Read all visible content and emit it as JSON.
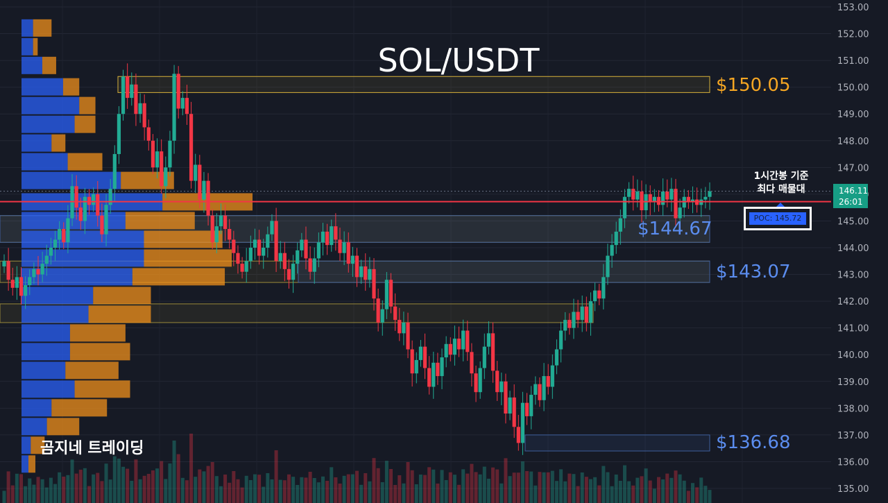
{
  "title": "SOL/USDT",
  "watermark": "곰지네 트레이딩",
  "annotation": {
    "line1": "1시간봉 기준",
    "line2": "최다 매물대"
  },
  "poc": {
    "label": "POC: 145.72",
    "price": 145.72
  },
  "last_price": {
    "price": 146.11,
    "price_text": "146.11",
    "countdown": "26:01"
  },
  "colors": {
    "up": "#22ab94",
    "down": "#f23645",
    "vp_up": "#2962ff",
    "vp_down": "#f7931a",
    "poc_line": "#f23645",
    "level_orange": "#f5a623",
    "level_blue": "#5b8def"
  },
  "levels": [
    {
      "price": 150.05,
      "text": "$150.05",
      "color": "orange"
    },
    {
      "price": 144.67,
      "text": "$144.67",
      "color": "blue"
    },
    {
      "price": 143.07,
      "text": "$143.07",
      "color": "blue"
    },
    {
      "price": 136.68,
      "text": "$136.68",
      "color": "blue"
    }
  ],
  "chart_data": {
    "type": "candlestick",
    "title": "SOL/USDT",
    "y_ticks": [
      "153.00",
      "152.00",
      "151.00",
      "150.00",
      "149.00",
      "148.00",
      "147.00",
      "146.00",
      "145.00",
      "144.00",
      "143.00",
      "142.00",
      "141.00",
      "140.00",
      "139.00",
      "138.00",
      "137.00",
      "136.00",
      "135.00"
    ],
    "ylim": [
      134.6,
      153.3
    ],
    "grid": true,
    "zones": [
      {
        "from": 149.8,
        "to": 150.4,
        "color": "orange"
      },
      {
        "from": 144.2,
        "to": 145.2,
        "color": "yellow"
      },
      {
        "from": 142.7,
        "to": 143.5,
        "color": "yellow"
      },
      {
        "from": 141.2,
        "to": 141.9,
        "color": "yellow"
      },
      {
        "from": 144.2,
        "to": 145.2,
        "color": "blue"
      },
      {
        "from": 142.7,
        "to": 143.5,
        "color": "blue"
      },
      {
        "from": 136.4,
        "to": 137.0,
        "color": "blue"
      }
    ],
    "volume_profile": [
      [
        152.2,
        0.05,
        0.13
      ],
      [
        151.5,
        0.05,
        0.07
      ],
      [
        150.8,
        0.09,
        0.15
      ],
      [
        150.0,
        0.18,
        0.25
      ],
      [
        149.3,
        0.25,
        0.32
      ],
      [
        148.6,
        0.23,
        0.32
      ],
      [
        147.9,
        0.13,
        0.19
      ],
      [
        147.2,
        0.2,
        0.35
      ],
      [
        146.5,
        0.43,
        0.66
      ],
      [
        145.7,
        0.61,
        1.0
      ],
      [
        145.0,
        0.45,
        0.75
      ],
      [
        144.3,
        0.53,
        0.87
      ],
      [
        143.6,
        0.53,
        0.91
      ],
      [
        142.9,
        0.48,
        0.88
      ],
      [
        142.2,
        0.31,
        0.56
      ],
      [
        141.5,
        0.29,
        0.56
      ],
      [
        140.8,
        0.21,
        0.45
      ],
      [
        140.1,
        0.21,
        0.47
      ],
      [
        139.4,
        0.19,
        0.42
      ],
      [
        138.7,
        0.23,
        0.47
      ],
      [
        138.0,
        0.13,
        0.37
      ],
      [
        137.3,
        0.11,
        0.25
      ],
      [
        136.6,
        0.04,
        0.1
      ],
      [
        135.9,
        0.03,
        0.06
      ]
    ],
    "candles": [
      [
        143.3,
        143.5
      ],
      [
        143.5,
        142.8
      ],
      [
        142.8,
        142.5
      ],
      [
        142.5,
        142.9
      ],
      [
        142.9,
        142.2
      ],
      [
        142.2,
        142.6
      ],
      [
        142.6,
        142.9
      ],
      [
        142.9,
        143.2
      ],
      [
        143.2,
        143.0
      ],
      [
        143.0,
        143.4
      ],
      [
        143.4,
        143.7
      ],
      [
        143.7,
        144.0
      ],
      [
        144.0,
        144.3
      ],
      [
        144.3,
        144.7
      ],
      [
        144.7,
        144.2
      ],
      [
        144.2,
        145.1
      ],
      [
        145.1,
        146.3
      ],
      [
        146.3,
        145.5
      ],
      [
        145.5,
        145.0
      ],
      [
        145.0,
        145.9
      ],
      [
        145.9,
        145.6
      ],
      [
        145.6,
        146.0
      ],
      [
        146.0,
        145.2
      ],
      [
        145.2,
        144.5
      ],
      [
        144.5,
        145.6
      ],
      [
        145.6,
        146.2
      ],
      [
        146.2,
        147.5
      ],
      [
        147.5,
        149.0
      ],
      [
        149.0,
        150.4
      ],
      [
        150.4,
        149.6
      ],
      [
        149.6,
        150.1
      ],
      [
        150.1,
        149.0
      ],
      [
        149.0,
        149.4
      ],
      [
        149.4,
        148.5
      ],
      [
        148.5,
        148.0
      ],
      [
        148.0,
        147.0
      ],
      [
        147.0,
        147.6
      ],
      [
        147.6,
        146.3
      ],
      [
        146.3,
        147.0
      ],
      [
        147.0,
        148.0
      ],
      [
        148.0,
        150.5
      ],
      [
        150.5,
        149.2
      ],
      [
        149.2,
        149.6
      ],
      [
        149.6,
        149.0
      ],
      [
        149.0,
        146.5
      ],
      [
        146.5,
        147.1
      ],
      [
        147.1,
        145.8
      ],
      [
        145.8,
        146.5
      ],
      [
        146.5,
        145.2
      ],
      [
        145.2,
        144.2
      ],
      [
        144.2,
        144.8
      ],
      [
        144.8,
        145.2
      ],
      [
        145.2,
        144.7
      ],
      [
        144.7,
        144.3
      ],
      [
        144.3,
        143.8
      ],
      [
        143.8,
        143.4
      ],
      [
        143.4,
        143.1
      ],
      [
        143.1,
        143.5
      ],
      [
        143.5,
        144.0
      ],
      [
        144.0,
        144.3
      ],
      [
        144.3,
        143.7
      ],
      [
        143.7,
        144.0
      ],
      [
        144.0,
        144.5
      ],
      [
        144.5,
        145.0
      ],
      [
        145.0,
        143.5
      ],
      [
        143.5,
        143.8
      ],
      [
        143.8,
        143.2
      ],
      [
        143.2,
        142.8
      ],
      [
        142.8,
        143.4
      ],
      [
        143.4,
        143.9
      ],
      [
        143.9,
        144.3
      ],
      [
        144.3,
        143.6
      ],
      [
        143.6,
        143.1
      ],
      [
        143.1,
        143.6
      ],
      [
        143.6,
        144.2
      ],
      [
        144.2,
        144.6
      ],
      [
        144.6,
        144.1
      ],
      [
        144.1,
        144.8
      ],
      [
        144.8,
        144.3
      ],
      [
        144.3,
        143.8
      ],
      [
        143.8,
        144.2
      ],
      [
        144.2,
        143.4
      ],
      [
        143.4,
        143.7
      ],
      [
        143.7,
        142.9
      ],
      [
        142.9,
        143.3
      ],
      [
        143.3,
        142.8
      ],
      [
        142.8,
        143.2
      ],
      [
        143.2,
        142.1
      ],
      [
        142.1,
        141.2
      ],
      [
        141.2,
        141.7
      ],
      [
        141.7,
        142.8
      ],
      [
        142.8,
        141.8
      ],
      [
        141.8,
        141.3
      ],
      [
        141.3,
        140.8
      ],
      [
        140.8,
        141.2
      ],
      [
        141.2,
        140.2
      ],
      [
        140.2,
        139.3
      ],
      [
        139.3,
        139.8
      ],
      [
        139.8,
        140.3
      ],
      [
        140.3,
        139.5
      ],
      [
        139.5,
        138.8
      ],
      [
        138.8,
        139.7
      ],
      [
        139.7,
        139.2
      ],
      [
        139.2,
        139.9
      ],
      [
        139.9,
        140.4
      ],
      [
        140.4,
        140.0
      ],
      [
        140.0,
        140.6
      ],
      [
        140.6,
        140.2
      ],
      [
        140.2,
        140.9
      ],
      [
        140.9,
        140.1
      ],
      [
        140.1,
        139.3
      ],
      [
        139.3,
        138.6
      ],
      [
        138.6,
        139.5
      ],
      [
        139.5,
        140.3
      ],
      [
        140.3,
        140.8
      ],
      [
        140.8,
        139.4
      ],
      [
        139.4,
        138.6
      ],
      [
        138.6,
        139.0
      ],
      [
        139.0,
        137.8
      ],
      [
        137.8,
        138.4
      ],
      [
        138.4,
        137.3
      ],
      [
        137.3,
        136.7
      ],
      [
        136.7,
        138.2
      ],
      [
        138.2,
        137.7
      ],
      [
        137.7,
        138.5
      ],
      [
        138.5,
        138.9
      ],
      [
        138.9,
        138.3
      ],
      [
        138.3,
        139.2
      ],
      [
        139.2,
        138.8
      ],
      [
        138.8,
        139.6
      ],
      [
        139.6,
        140.2
      ],
      [
        140.2,
        140.9
      ],
      [
        140.9,
        141.3
      ],
      [
        141.3,
        141.0
      ],
      [
        141.0,
        141.6
      ],
      [
        141.6,
        141.3
      ],
      [
        141.3,
        141.8
      ],
      [
        141.8,
        141.2
      ],
      [
        141.2,
        142.0
      ],
      [
        142.0,
        142.4
      ],
      [
        142.4,
        142.1
      ],
      [
        142.1,
        142.9
      ],
      [
        142.9,
        143.7
      ],
      [
        143.7,
        144.1
      ],
      [
        144.1,
        144.6
      ],
      [
        144.6,
        145.1
      ],
      [
        145.1,
        145.9
      ],
      [
        145.9,
        146.2
      ],
      [
        146.2,
        145.8
      ],
      [
        145.8,
        146.1
      ],
      [
        146.1,
        145.4
      ],
      [
        145.4,
        146.0
      ],
      [
        146.0,
        145.7
      ],
      [
        145.7,
        145.9
      ],
      [
        145.9,
        145.6
      ],
      [
        145.6,
        146.1
      ],
      [
        146.1,
        145.8
      ],
      [
        145.8,
        146.2
      ],
      [
        146.2,
        145.1
      ],
      [
        145.1,
        145.5
      ],
      [
        145.5,
        145.9
      ],
      [
        145.9,
        145.7
      ],
      [
        145.7,
        145.8
      ],
      [
        145.8,
        145.6
      ],
      [
        145.6,
        145.8
      ],
      [
        145.8,
        145.9
      ],
      [
        145.9,
        146.11
      ]
    ]
  }
}
